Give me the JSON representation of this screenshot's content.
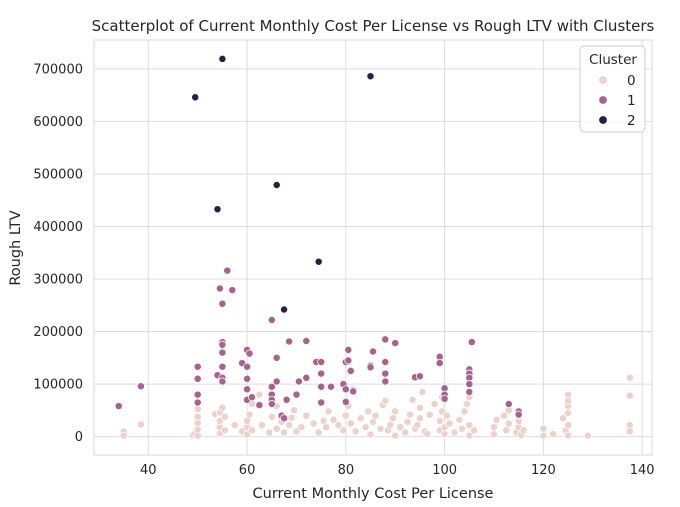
{
  "chart_data": {
    "type": "scatter",
    "title": "Scatterplot of Current Monthly Cost Per License vs Rough LTV with Clusters",
    "xlabel": "Current Monthly Cost Per License",
    "ylabel": "Rough LTV",
    "xlim": [
      29,
      142
    ],
    "ylim": [
      -35000,
      755000
    ],
    "xticks": [
      40,
      60,
      80,
      100,
      120,
      140
    ],
    "yticks": [
      0,
      100000,
      200000,
      300000,
      400000,
      500000,
      600000,
      700000
    ],
    "grid": true,
    "background": "#ffffff",
    "legend": {
      "title": "Cluster",
      "placement": "top-right",
      "entries": [
        "0",
        "1",
        "2"
      ]
    },
    "colors": {
      "0": "#ecd2cb",
      "1": "#a8628f",
      "2": "#2c1e3e"
    },
    "series": [
      {
        "name": "0",
        "points": [
          [
            35,
            10000
          ],
          [
            35,
            2000
          ],
          [
            38.5,
            23000
          ],
          [
            49,
            3000
          ],
          [
            49.5,
            6000
          ],
          [
            50,
            2000
          ],
          [
            50,
            14000
          ],
          [
            50,
            26000
          ],
          [
            50,
            38000
          ],
          [
            50,
            52000
          ],
          [
            53.5,
            43000
          ],
          [
            54.5,
            6000
          ],
          [
            54.5,
            18000
          ],
          [
            54.5,
            30000
          ],
          [
            54.5,
            46000
          ],
          [
            55,
            55000
          ],
          [
            55.5,
            12000
          ],
          [
            55.5,
            38000
          ],
          [
            57.5,
            22000
          ],
          [
            59,
            10000
          ],
          [
            60,
            4000
          ],
          [
            60,
            18000
          ],
          [
            60,
            30000
          ],
          [
            60.5,
            42000
          ],
          [
            61,
            12000
          ],
          [
            61,
            62000
          ],
          [
            62.5,
            80000
          ],
          [
            63,
            22000
          ],
          [
            64.5,
            8000
          ],
          [
            65,
            38000
          ],
          [
            66,
            15000
          ],
          [
            66,
            58000
          ],
          [
            67,
            28000
          ],
          [
            67.5,
            8000
          ],
          [
            68.5,
            22000
          ],
          [
            69,
            36000
          ],
          [
            69.5,
            50000
          ],
          [
            70,
            10000
          ],
          [
            71,
            18000
          ],
          [
            72,
            40000
          ],
          [
            73.5,
            25000
          ],
          [
            74.5,
            8000
          ],
          [
            75.5,
            30000
          ],
          [
            76,
            18000
          ],
          [
            76.5,
            48000
          ],
          [
            77.5,
            32000
          ],
          [
            78.5,
            22000
          ],
          [
            79.5,
            12000
          ],
          [
            80,
            40000
          ],
          [
            80.5,
            58000
          ],
          [
            81,
            25000
          ],
          [
            81.5,
            90000
          ],
          [
            82,
            10000
          ],
          [
            83,
            35000
          ],
          [
            84,
            18000
          ],
          [
            84.5,
            48000
          ],
          [
            85,
            4000
          ],
          [
            85.5,
            28000
          ],
          [
            86,
            40000
          ],
          [
            87,
            15000
          ],
          [
            87.5,
            60000
          ],
          [
            88,
            68000
          ],
          [
            88.5,
            12000
          ],
          [
            89,
            22000
          ],
          [
            89.5,
            35000
          ],
          [
            90,
            2000
          ],
          [
            90,
            48000
          ],
          [
            91,
            18000
          ],
          [
            92,
            8000
          ],
          [
            92.5,
            28000
          ],
          [
            93,
            42000
          ],
          [
            93.5,
            70000
          ],
          [
            94,
            15000
          ],
          [
            94.5,
            22000
          ],
          [
            95,
            35000
          ],
          [
            95,
            55000
          ],
          [
            95.5,
            85000
          ],
          [
            96,
            10000
          ],
          [
            96.5,
            5000
          ],
          [
            97,
            42000
          ],
          [
            98,
            62000
          ],
          [
            99,
            12000
          ],
          [
            99,
            30000
          ],
          [
            99.5,
            48000
          ],
          [
            99.5,
            75000
          ],
          [
            100,
            5000
          ],
          [
            100,
            18000
          ],
          [
            100.5,
            40000
          ],
          [
            101,
            25000
          ],
          [
            102,
            8000
          ],
          [
            103,
            32000
          ],
          [
            103.5,
            15000
          ],
          [
            104,
            48000
          ],
          [
            104.5,
            62000
          ],
          [
            105,
            2000
          ],
          [
            105,
            22000
          ],
          [
            105,
            75000
          ],
          [
            106,
            12000
          ],
          [
            110,
            5000
          ],
          [
            110,
            18000
          ],
          [
            110.5,
            32000
          ],
          [
            112,
            40000
          ],
          [
            112.5,
            12000
          ],
          [
            113,
            25000
          ],
          [
            113,
            50000
          ],
          [
            114.5,
            8000
          ],
          [
            115,
            18000
          ],
          [
            115,
            30000
          ],
          [
            115,
            40000
          ],
          [
            115.5,
            3000
          ],
          [
            116,
            12000
          ],
          [
            120,
            2000
          ],
          [
            120,
            15000
          ],
          [
            122,
            5000
          ],
          [
            124,
            35000
          ],
          [
            124.5,
            12000
          ],
          [
            125,
            2000
          ],
          [
            125,
            22000
          ],
          [
            125,
            45000
          ],
          [
            125,
            58000
          ],
          [
            125,
            68000
          ],
          [
            125,
            80000
          ],
          [
            129,
            2000
          ],
          [
            137.5,
            112000
          ],
          [
            137.5,
            78000
          ],
          [
            137.5,
            22000
          ],
          [
            137.5,
            10000
          ]
        ]
      },
      {
        "name": "1",
        "points": [
          [
            34,
            58000
          ],
          [
            38.5,
            96000
          ],
          [
            50,
            133000
          ],
          [
            50,
            110000
          ],
          [
            50,
            80000
          ],
          [
            50,
            65000
          ],
          [
            54,
            117000
          ],
          [
            54.5,
            282000
          ],
          [
            55,
            253000
          ],
          [
            55,
            180000
          ],
          [
            55,
            175000
          ],
          [
            55,
            160000
          ],
          [
            55,
            133000
          ],
          [
            55,
            112000
          ],
          [
            55,
            105000
          ],
          [
            56,
            316000
          ],
          [
            57,
            279000
          ],
          [
            59,
            140000
          ],
          [
            60,
            165000
          ],
          [
            60,
            133000
          ],
          [
            60,
            110000
          ],
          [
            60,
            90000
          ],
          [
            60,
            70000
          ],
          [
            60.5,
            158000
          ],
          [
            61,
            75000
          ],
          [
            62.5,
            60000
          ],
          [
            65,
            222000
          ],
          [
            65,
            95000
          ],
          [
            65,
            80000
          ],
          [
            65,
            70000
          ],
          [
            65,
            62000
          ],
          [
            66,
            150000
          ],
          [
            66,
            105000
          ],
          [
            67,
            40000
          ],
          [
            67.5,
            35000
          ],
          [
            68,
            70000
          ],
          [
            68.5,
            181000
          ],
          [
            70,
            80000
          ],
          [
            70.5,
            105000
          ],
          [
            72,
            182000
          ],
          [
            72,
            112000
          ],
          [
            74,
            142000
          ],
          [
            75,
            142000
          ],
          [
            75,
            120000
          ],
          [
            75,
            95000
          ],
          [
            75,
            65000
          ],
          [
            77,
            95000
          ],
          [
            79.5,
            100000
          ],
          [
            80,
            142000
          ],
          [
            80,
            90000
          ],
          [
            80,
            66000
          ],
          [
            80.5,
            145000
          ],
          [
            80.5,
            165000
          ],
          [
            81,
            125000
          ],
          [
            81.5,
            86000
          ],
          [
            85,
            135000
          ],
          [
            85,
            132000
          ],
          [
            85.5,
            162000
          ],
          [
            88,
            185000
          ],
          [
            88,
            142000
          ],
          [
            88,
            120000
          ],
          [
            88,
            105000
          ],
          [
            90,
            178000
          ],
          [
            94,
            113000
          ],
          [
            95,
            115000
          ],
          [
            99,
            152000
          ],
          [
            99,
            140000
          ],
          [
            100,
            92000
          ],
          [
            100,
            80000
          ],
          [
            100,
            72000
          ],
          [
            105,
            128000
          ],
          [
            105,
            120000
          ],
          [
            105,
            112000
          ],
          [
            105,
            100000
          ],
          [
            105,
            85000
          ],
          [
            105.5,
            180000
          ],
          [
            113,
            62000
          ],
          [
            115,
            48000
          ],
          [
            115,
            42000
          ]
        ]
      },
      {
        "name": "2",
        "points": [
          [
            49.5,
            646000
          ],
          [
            54,
            433000
          ],
          [
            55,
            719000
          ],
          [
            66,
            479000
          ],
          [
            67.5,
            242000
          ],
          [
            74.5,
            333000
          ],
          [
            85,
            686000
          ]
        ]
      }
    ]
  }
}
